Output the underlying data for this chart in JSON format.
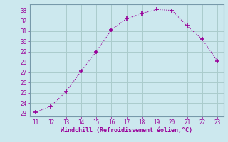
{
  "x": [
    11,
    12,
    13,
    14,
    15,
    16,
    17,
    18,
    19,
    20,
    21,
    22,
    23
  ],
  "y": [
    23.1,
    23.7,
    25.1,
    27.1,
    29.0,
    31.1,
    32.2,
    32.7,
    33.1,
    33.0,
    31.5,
    30.2,
    28.1
  ],
  "xlim": [
    10.6,
    23.4
  ],
  "ylim": [
    22.7,
    33.6
  ],
  "xticks": [
    11,
    12,
    13,
    14,
    15,
    16,
    17,
    18,
    19,
    20,
    21,
    22,
    23
  ],
  "yticks": [
    23,
    24,
    25,
    26,
    27,
    28,
    29,
    30,
    31,
    32,
    33
  ],
  "xlabel": "Windchill (Refroidissement éolien,°C)",
  "line_color": "#990099",
  "marker": "+",
  "bg_color": "#cce8ee",
  "grid_color": "#aacccc",
  "xlabel_color": "#990099",
  "tick_color": "#990099",
  "font_family": "monospace"
}
